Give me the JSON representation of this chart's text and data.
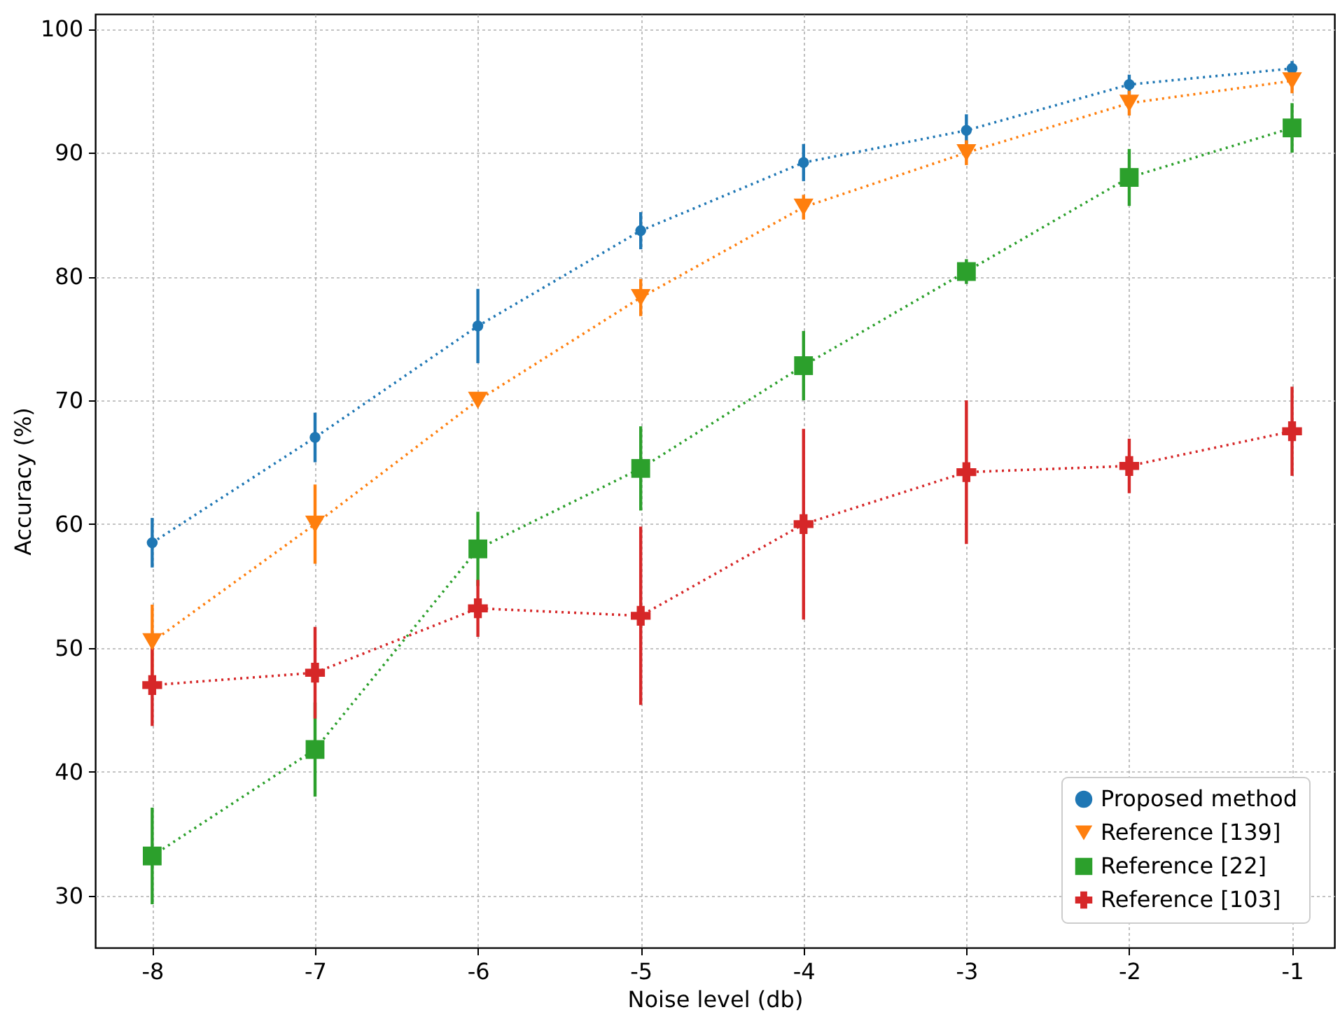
{
  "chart_data": {
    "type": "line",
    "xlabel": "Noise level (db)",
    "ylabel": "Accuracy (%)",
    "x": [
      -8,
      -7,
      -6,
      -5,
      -4,
      -3,
      -2,
      -1
    ],
    "xlim": [
      -8.35,
      -0.74
    ],
    "xticks": [
      -8,
      -7,
      -6,
      -5,
      -4,
      -3,
      -2,
      -1
    ],
    "ylim": [
      25.8,
      101.2
    ],
    "yticks": [
      30,
      40,
      50,
      60,
      70,
      80,
      90,
      100
    ],
    "grid": true,
    "legend": "bottom right",
    "line_style": "dotted",
    "series": [
      {
        "name": "Proposed method",
        "color": "#1f77b4",
        "marker": "circle",
        "values": [
          58.5,
          67,
          76,
          83.7,
          89.2,
          91.8,
          95.5,
          96.8
        ],
        "errors": [
          2,
          2,
          3,
          1.5,
          1.5,
          1.3,
          0.8,
          0.6
        ]
      },
      {
        "name": "Reference [139]",
        "color": "#ff7f0e",
        "marker": "triangle",
        "values": [
          50.5,
          60,
          70,
          78.3,
          85.6,
          90,
          94,
          95.8
        ],
        "errors": [
          3,
          3.2,
          0.5,
          1.5,
          1,
          1,
          1,
          1
        ]
      },
      {
        "name": "Reference [22]",
        "color": "#2ca02c",
        "marker": "square",
        "values": [
          33.2,
          41.8,
          58,
          64.5,
          72.8,
          80.4,
          88,
          92
        ],
        "errors": [
          3.9,
          3.8,
          3,
          3.4,
          2.8,
          1,
          2.3,
          2
        ]
      },
      {
        "name": "Reference [103]",
        "color": "#d62728",
        "marker": "cross",
        "values": [
          47,
          48,
          53.2,
          52.6,
          60,
          64.2,
          64.7,
          67.5
        ],
        "errors": [
          3.3,
          3.7,
          2.3,
          7.2,
          7.7,
          5.8,
          2.2,
          3.6
        ]
      }
    ]
  }
}
